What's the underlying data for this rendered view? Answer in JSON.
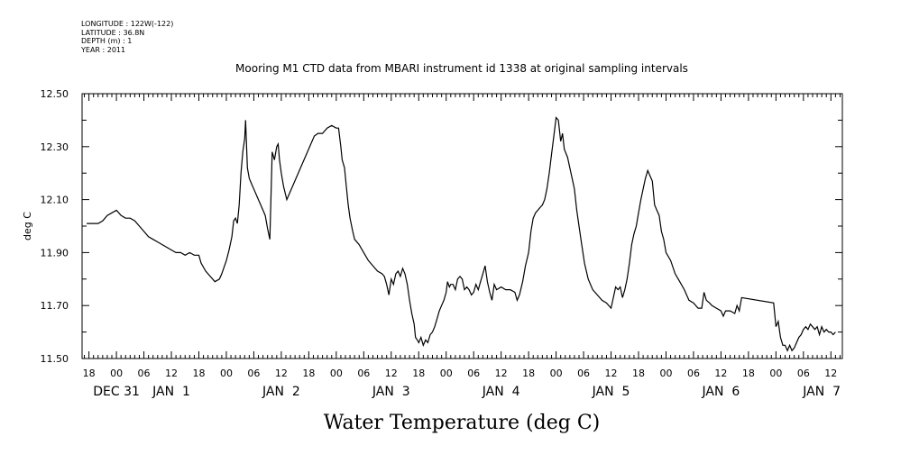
{
  "header_meta": {
    "longitude": "LONGITUDE : 122W(-122)",
    "latitude": "LATITUDE : 36.8N",
    "depth": "DEPTH (m) : 1",
    "year": "YEAR : 2011"
  },
  "chart_data": {
    "type": "line",
    "title": "Mooring M1 CTD data from MBARI instrument id 1338 at original sampling intervals",
    "xlabel": "Water Temperature (deg C)",
    "ylabel": "deg C",
    "ylim": [
      11.5,
      12.5
    ],
    "yticks": [
      11.5,
      11.7,
      11.9,
      12.1,
      12.3,
      12.5
    ],
    "ytick_labels": [
      "11.50",
      "11.70",
      "11.90",
      "12.10",
      "12.30",
      "12.50"
    ],
    "x_unit": "hours since Dec 31 00:00, 2011",
    "xlim": [
      -7.5,
      158.5
    ],
    "x_hour_ticks": [
      -6,
      0,
      6,
      12,
      18,
      24,
      30,
      36,
      42,
      48,
      54,
      60,
      66,
      72,
      78,
      84,
      90,
      96,
      102,
      108,
      114,
      120,
      126,
      132,
      138,
      144,
      150,
      156
    ],
    "x_hour_labels": [
      "18",
      "00",
      "06",
      "12",
      "18",
      "00",
      "06",
      "12",
      "18",
      "00",
      "06",
      "12",
      "18",
      "00",
      "06",
      "12",
      "18",
      "00",
      "06",
      "12",
      "18",
      "00",
      "06",
      "12",
      "18",
      "00",
      "06",
      "12"
    ],
    "x_day_labels": [
      {
        "x": 0,
        "label": "DEC 31"
      },
      {
        "x": 12,
        "label": "JAN  1"
      },
      {
        "x": 36,
        "label": "JAN  2"
      },
      {
        "x": 60,
        "label": "JAN  3"
      },
      {
        "x": 84,
        "label": "JAN  4"
      },
      {
        "x": 108,
        "label": "JAN  5"
      },
      {
        "x": 132,
        "label": "JAN  6"
      },
      {
        "x": 154,
        "label": "JAN  7"
      }
    ],
    "grid": false,
    "series": [
      {
        "points": [
          [
            -6.5,
            12.01
          ],
          [
            -5,
            12.01
          ],
          [
            -4,
            12.01
          ],
          [
            -3,
            12.02
          ],
          [
            -2,
            12.04
          ],
          [
            -1,
            12.05
          ],
          [
            0,
            12.06
          ],
          [
            1,
            12.04
          ],
          [
            2,
            12.03
          ],
          [
            3,
            12.03
          ],
          [
            4,
            12.02
          ],
          [
            5,
            12.0
          ],
          [
            6,
            11.98
          ],
          [
            7,
            11.96
          ],
          [
            8,
            11.95
          ],
          [
            9,
            11.94
          ],
          [
            10,
            11.93
          ],
          [
            11,
            11.92
          ],
          [
            12,
            11.91
          ],
          [
            13,
            11.9
          ],
          [
            14,
            11.9
          ],
          [
            15,
            11.89
          ],
          [
            16,
            11.9
          ],
          [
            17,
            11.89
          ],
          [
            18,
            11.89
          ],
          [
            18.5,
            11.86
          ],
          [
            19.5,
            11.83
          ],
          [
            20.5,
            11.81
          ],
          [
            21.5,
            11.79
          ],
          [
            22.5,
            11.8
          ],
          [
            23,
            11.82
          ],
          [
            24,
            11.87
          ],
          [
            24.6,
            11.91
          ],
          [
            25.2,
            11.96
          ],
          [
            25.6,
            12.02
          ],
          [
            26,
            12.03
          ],
          [
            26.4,
            12.01
          ],
          [
            26.8,
            12.08
          ],
          [
            27.2,
            12.2
          ],
          [
            27.6,
            12.28
          ],
          [
            28,
            12.33
          ],
          [
            28.2,
            12.4
          ],
          [
            28.6,
            12.22
          ],
          [
            29,
            12.18
          ],
          [
            29.5,
            12.16
          ],
          [
            30,
            12.14
          ],
          [
            30.5,
            12.12
          ],
          [
            31,
            12.1
          ],
          [
            31.5,
            12.08
          ],
          [
            32,
            12.06
          ],
          [
            32.5,
            12.04
          ],
          [
            33,
            11.99
          ],
          [
            33.5,
            11.95
          ],
          [
            34,
            12.28
          ],
          [
            34.5,
            12.25
          ],
          [
            35,
            12.3
          ],
          [
            35.3,
            12.31
          ],
          [
            35.6,
            12.25
          ],
          [
            36,
            12.2
          ],
          [
            36.5,
            12.15
          ],
          [
            37.2,
            12.1
          ],
          [
            43.2,
            12.34
          ],
          [
            44,
            12.35
          ],
          [
            45,
            12.35
          ],
          [
            46,
            12.37
          ],
          [
            47,
            12.38
          ],
          [
            48,
            12.37
          ],
          [
            48.5,
            12.37
          ],
          [
            49,
            12.3
          ],
          [
            49.3,
            12.25
          ],
          [
            49.8,
            12.22
          ],
          [
            50.2,
            12.15
          ],
          [
            50.6,
            12.08
          ],
          [
            51,
            12.03
          ],
          [
            51.6,
            11.98
          ],
          [
            52,
            11.95
          ],
          [
            53,
            11.93
          ],
          [
            54,
            11.9
          ],
          [
            55,
            11.87
          ],
          [
            56,
            11.85
          ],
          [
            57,
            11.83
          ],
          [
            58,
            11.82
          ],
          [
            58.5,
            11.81
          ],
          [
            59,
            11.78
          ],
          [
            59.5,
            11.74
          ],
          [
            60,
            11.8
          ],
          [
            60.5,
            11.78
          ],
          [
            61,
            11.82
          ],
          [
            61.5,
            11.83
          ],
          [
            62,
            11.81
          ],
          [
            62.5,
            11.84
          ],
          [
            63,
            11.82
          ],
          [
            63.5,
            11.78
          ],
          [
            64,
            11.72
          ],
          [
            64.5,
            11.67
          ],
          [
            65,
            11.63
          ],
          [
            65.3,
            11.58
          ],
          [
            65.7,
            11.57
          ],
          [
            66,
            11.56
          ],
          [
            66.5,
            11.58
          ],
          [
            67,
            11.55
          ],
          [
            67.5,
            11.57
          ],
          [
            68,
            11.56
          ],
          [
            68.5,
            11.59
          ],
          [
            69,
            11.6
          ],
          [
            69.5,
            11.62
          ],
          [
            70,
            11.65
          ],
          [
            70.5,
            11.68
          ],
          [
            71,
            11.7
          ],
          [
            71.5,
            11.72
          ],
          [
            72,
            11.75
          ],
          [
            72.3,
            11.79
          ],
          [
            72.7,
            11.77
          ],
          [
            73,
            11.78
          ],
          [
            73.5,
            11.78
          ],
          [
            74,
            11.76
          ],
          [
            74.5,
            11.8
          ],
          [
            75,
            11.81
          ],
          [
            75.5,
            11.8
          ],
          [
            76,
            11.76
          ],
          [
            76.5,
            11.77
          ],
          [
            77,
            11.76
          ],
          [
            77.5,
            11.74
          ],
          [
            78,
            11.75
          ],
          [
            78.5,
            11.78
          ],
          [
            79,
            11.76
          ],
          [
            79.5,
            11.79
          ],
          [
            80,
            11.82
          ],
          [
            80.5,
            11.85
          ],
          [
            81,
            11.79
          ],
          [
            81.5,
            11.75
          ],
          [
            82,
            11.72
          ],
          [
            82.5,
            11.78
          ],
          [
            83,
            11.76
          ],
          [
            84,
            11.77
          ],
          [
            85,
            11.76
          ],
          [
            86,
            11.76
          ],
          [
            87,
            11.75
          ],
          [
            87.5,
            11.72
          ],
          [
            88,
            11.74
          ],
          [
            88.7,
            11.79
          ],
          [
            89.3,
            11.85
          ],
          [
            90,
            11.9
          ],
          [
            90.5,
            11.98
          ],
          [
            91,
            12.03
          ],
          [
            91.5,
            12.05
          ],
          [
            92,
            12.06
          ],
          [
            92.5,
            12.07
          ],
          [
            93,
            12.08
          ],
          [
            93.5,
            12.1
          ],
          [
            94,
            12.14
          ],
          [
            94.5,
            12.2
          ],
          [
            95,
            12.27
          ],
          [
            95.5,
            12.34
          ],
          [
            96,
            12.41
          ],
          [
            96.5,
            12.4
          ],
          [
            97,
            12.32
          ],
          [
            97.4,
            12.35
          ],
          [
            97.8,
            12.29
          ],
          [
            98.5,
            12.26
          ],
          [
            99,
            12.22
          ],
          [
            99.5,
            12.18
          ],
          [
            100,
            12.14
          ],
          [
            100.5,
            12.06
          ],
          [
            101,
            12.0
          ],
          [
            101.6,
            11.93
          ],
          [
            102.2,
            11.86
          ],
          [
            103,
            11.8
          ],
          [
            104,
            11.76
          ],
          [
            105,
            11.74
          ],
          [
            106,
            11.72
          ],
          [
            107,
            11.71
          ],
          [
            108,
            11.69
          ],
          [
            108.5,
            11.73
          ],
          [
            109,
            11.77
          ],
          [
            109.5,
            11.76
          ],
          [
            110,
            11.77
          ],
          [
            110.5,
            11.73
          ],
          [
            111,
            11.76
          ],
          [
            111.5,
            11.8
          ],
          [
            112,
            11.86
          ],
          [
            112.5,
            11.93
          ],
          [
            113,
            11.97
          ],
          [
            113.5,
            12.0
          ],
          [
            114,
            12.05
          ],
          [
            114.5,
            12.1
          ],
          [
            115,
            12.14
          ],
          [
            115.5,
            12.18
          ],
          [
            116,
            12.21
          ],
          [
            116.5,
            12.19
          ],
          [
            117,
            12.17
          ],
          [
            117.5,
            12.08
          ],
          [
            118,
            12.06
          ],
          [
            118.5,
            12.04
          ],
          [
            119,
            11.98
          ],
          [
            119.5,
            11.95
          ],
          [
            120,
            11.9
          ],
          [
            121,
            11.87
          ],
          [
            122,
            11.82
          ],
          [
            123,
            11.79
          ],
          [
            124,
            11.76
          ],
          [
            125,
            11.72
          ],
          [
            126,
            11.71
          ],
          [
            127,
            11.69
          ],
          [
            127.8,
            11.69
          ],
          [
            128.3,
            11.75
          ],
          [
            128.8,
            11.72
          ],
          [
            129.5,
            11.71
          ],
          [
            130,
            11.7
          ],
          [
            131,
            11.69
          ],
          [
            132,
            11.68
          ],
          [
            132.5,
            11.66
          ],
          [
            133,
            11.68
          ],
          [
            134,
            11.68
          ],
          [
            135,
            11.67
          ],
          [
            135.5,
            11.7
          ],
          [
            136,
            11.68
          ],
          [
            136.5,
            11.73
          ],
          [
            143.5,
            11.71
          ],
          [
            144,
            11.62
          ],
          [
            144.5,
            11.64
          ],
          [
            145,
            11.58
          ],
          [
            145.5,
            11.55
          ],
          [
            146,
            11.55
          ],
          [
            146.5,
            11.53
          ],
          [
            147,
            11.55
          ],
          [
            147.5,
            11.53
          ],
          [
            148,
            11.54
          ],
          [
            148.5,
            11.56
          ],
          [
            149,
            11.58
          ],
          [
            149.5,
            11.59
          ],
          [
            150,
            11.61
          ],
          [
            150.5,
            11.62
          ],
          [
            151,
            11.61
          ],
          [
            151.5,
            11.63
          ],
          [
            152,
            11.62
          ],
          [
            152.5,
            11.61
          ],
          [
            153,
            11.62
          ],
          [
            153.5,
            11.59
          ],
          [
            154,
            11.62
          ],
          [
            154.5,
            11.6
          ],
          [
            155,
            11.61
          ],
          [
            155.5,
            11.6
          ],
          [
            156,
            11.6
          ],
          [
            156.5,
            11.59
          ],
          [
            157,
            11.6
          ]
        ]
      }
    ]
  }
}
